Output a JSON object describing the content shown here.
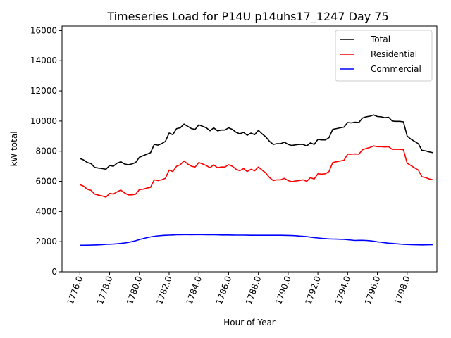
{
  "chart_data": {
    "type": "line",
    "title": "Timeseries Load for P14U p14uhs17_1247  Day 75",
    "xlabel": "Hour of Year",
    "ylabel": "kW total",
    "xlim": [
      1774.8,
      1800.0
    ],
    "ylim": [
      0,
      16300
    ],
    "x_ticks": [
      1776,
      1778,
      1780,
      1782,
      1784,
      1786,
      1788,
      1790,
      1792,
      1794,
      1796,
      1798
    ],
    "x_tick_labels": [
      "1776.0",
      "1778.0",
      "1780.0",
      "1782.0",
      "1784.0",
      "1786.0",
      "1788.0",
      "1790.0",
      "1792.0",
      "1794.0",
      "1796.0",
      "1798.0"
    ],
    "y_ticks": [
      0,
      2000,
      4000,
      6000,
      8000,
      10000,
      12000,
      14000,
      16000
    ],
    "y_tick_labels": [
      "0",
      "2000",
      "4000",
      "6000",
      "8000",
      "10000",
      "12000",
      "14000",
      "16000"
    ],
    "legend_position": "top-right",
    "x_start": 1776.0,
    "x_step": 0.25,
    "series": [
      {
        "name": "Total",
        "color": "#000000",
        "values": [
          7520,
          7420,
          7250,
          7180,
          6920,
          6880,
          6850,
          6800,
          7050,
          7000,
          7200,
          7300,
          7150,
          7100,
          7150,
          7250,
          7600,
          7700,
          7800,
          7900,
          8450,
          8400,
          8500,
          8650,
          9200,
          9100,
          9500,
          9550,
          9800,
          9650,
          9500,
          9450,
          9750,
          9650,
          9550,
          9350,
          9550,
          9350,
          9400,
          9400,
          9550,
          9450,
          9250,
          9150,
          9250,
          9050,
          9200,
          9100,
          9380,
          9150,
          8950,
          8650,
          8450,
          8500,
          8500,
          8600,
          8450,
          8380,
          8420,
          8450,
          8450,
          8350,
          8550,
          8450,
          8780,
          8750,
          8750,
          8900,
          9450,
          9500,
          9550,
          9600,
          9900,
          9880,
          9920,
          9900,
          10200,
          10280,
          10320,
          10400,
          10300,
          10280,
          10220,
          10250,
          10000,
          9980,
          9980,
          9950,
          9000,
          8800,
          8650,
          8500,
          8050,
          8020,
          7950,
          7900
        ]
      },
      {
        "name": "Residential",
        "color": "#ff0000",
        "values": [
          5780,
          5680,
          5480,
          5400,
          5150,
          5080,
          5030,
          4950,
          5200,
          5150,
          5300,
          5420,
          5230,
          5100,
          5100,
          5150,
          5450,
          5480,
          5550,
          5600,
          6100,
          6050,
          6100,
          6200,
          6750,
          6650,
          7000,
          7100,
          7350,
          7150,
          7000,
          6950,
          7250,
          7150,
          7050,
          6900,
          7100,
          6900,
          6950,
          6950,
          7100,
          7000,
          6800,
          6700,
          6850,
          6650,
          6800,
          6700,
          6950,
          6750,
          6550,
          6250,
          6050,
          6100,
          6100,
          6200,
          6050,
          5980,
          6020,
          6050,
          6100,
          6000,
          6250,
          6150,
          6500,
          6480,
          6500,
          6650,
          7250,
          7300,
          7350,
          7400,
          7800,
          7800,
          7820,
          7800,
          8100,
          8180,
          8250,
          8350,
          8300,
          8300,
          8280,
          8300,
          8120,
          8130,
          8120,
          8100,
          7200,
          7050,
          6900,
          6750,
          6300,
          6250,
          6150,
          6100
        ]
      },
      {
        "name": "Commercial",
        "color": "#0000ff",
        "values": [
          1760,
          1760,
          1765,
          1770,
          1780,
          1790,
          1800,
          1820,
          1830,
          1840,
          1860,
          1880,
          1910,
          1950,
          2000,
          2060,
          2140,
          2200,
          2260,
          2310,
          2350,
          2380,
          2400,
          2420,
          2430,
          2440,
          2450,
          2455,
          2460,
          2460,
          2455,
          2460,
          2460,
          2460,
          2455,
          2455,
          2450,
          2445,
          2440,
          2440,
          2440,
          2435,
          2430,
          2430,
          2430,
          2425,
          2420,
          2420,
          2420,
          2420,
          2420,
          2420,
          2420,
          2420,
          2420,
          2415,
          2410,
          2400,
          2390,
          2370,
          2350,
          2330,
          2300,
          2270,
          2240,
          2220,
          2200,
          2180,
          2170,
          2165,
          2160,
          2150,
          2130,
          2100,
          2080,
          2090,
          2090,
          2080,
          2060,
          2030,
          1990,
          1960,
          1930,
          1900,
          1880,
          1860,
          1840,
          1820,
          1810,
          1800,
          1795,
          1790,
          1785,
          1790,
          1795,
          1800
        ]
      }
    ]
  }
}
